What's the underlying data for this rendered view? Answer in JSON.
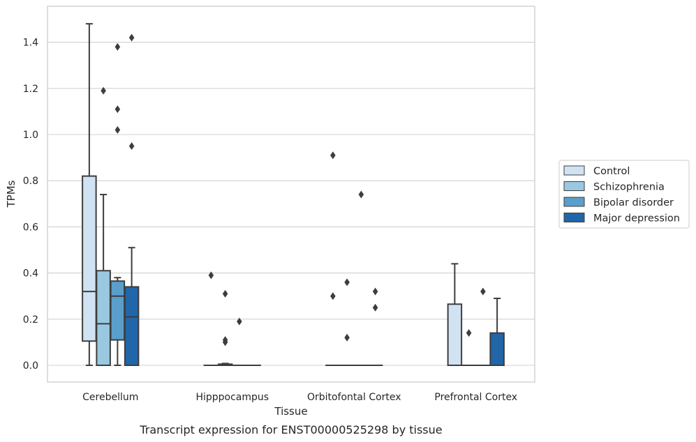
{
  "chart_data": {
    "type": "box",
    "title": "",
    "caption": "Transcript expression for ENST00000525298 by tissue",
    "xlabel": "Tissue",
    "ylabel": "TPMs",
    "ylim": [
      -0.07,
      1.56
    ],
    "yticks": [
      0.0,
      0.2,
      0.4,
      0.6,
      0.8,
      1.0,
      1.2,
      1.4
    ],
    "ytick_labels": [
      "0.0",
      "0.2",
      "0.4",
      "0.6",
      "0.8",
      "1.0",
      "1.2",
      "1.4"
    ],
    "grid": "horizontal",
    "legend_position": "right",
    "categories": [
      "Cerebellum",
      "Hipppocampus",
      "Orbitofontal Cortex",
      "Prefrontal Cortex"
    ],
    "series": [
      {
        "name": "Control",
        "color": "#d1e2f2",
        "boxes": [
          {
            "whislo": 0.0,
            "q1": 0.105,
            "med": 0.32,
            "q3": 0.82,
            "whishi": 1.48,
            "fliers": []
          },
          {
            "whislo": 0.0,
            "q1": 0.0,
            "med": 0.0,
            "q3": 0.0,
            "whishi": 0.0,
            "fliers": [
              0.39
            ]
          },
          {
            "whislo": 0.0,
            "q1": 0.0,
            "med": 0.0,
            "q3": 0.0,
            "whishi": 0.0,
            "fliers": [
              0.91,
              0.3
            ]
          },
          {
            "whislo": 0.0,
            "q1": 0.0,
            "med": 0.0,
            "q3": 0.265,
            "whishi": 0.44,
            "fliers": []
          }
        ]
      },
      {
        "name": "Schizophrenia",
        "color": "#9ac8e0",
        "boxes": [
          {
            "whislo": 0.0,
            "q1": 0.0,
            "med": 0.18,
            "q3": 0.41,
            "whishi": 0.74,
            "fliers": [
              1.19
            ]
          },
          {
            "whislo": 0.0,
            "q1": 0.0,
            "med": 0.0,
            "q3": 0.005,
            "whishi": 0.008,
            "fliers": [
              0.31,
              0.11,
              0.1
            ]
          },
          {
            "whislo": 0.0,
            "q1": 0.0,
            "med": 0.0,
            "q3": 0.0,
            "whishi": 0.0,
            "fliers": [
              0.36,
              0.12
            ]
          },
          {
            "whislo": 0.0,
            "q1": 0.0,
            "med": 0.0,
            "q3": 0.0,
            "whishi": 0.0,
            "fliers": [
              0.14
            ]
          }
        ]
      },
      {
        "name": "Bipolar disorder",
        "color": "#5a9fcb",
        "boxes": [
          {
            "whislo": 0.0,
            "q1": 0.11,
            "med": 0.3,
            "q3": 0.365,
            "whishi": 0.38,
            "fliers": [
              1.38,
              1.11,
              1.02
            ]
          },
          {
            "whislo": 0.0,
            "q1": 0.0,
            "med": 0.0,
            "q3": 0.0,
            "whishi": 0.0,
            "fliers": [
              0.19
            ]
          },
          {
            "whislo": 0.0,
            "q1": 0.0,
            "med": 0.0,
            "q3": 0.0,
            "whishi": 0.0,
            "fliers": [
              0.74
            ]
          },
          {
            "whislo": 0.0,
            "q1": 0.0,
            "med": 0.0,
            "q3": 0.0,
            "whishi": 0.0,
            "fliers": [
              0.32
            ]
          }
        ]
      },
      {
        "name": "Major depression",
        "color": "#2166a8",
        "boxes": [
          {
            "whislo": 0.0,
            "q1": 0.0,
            "med": 0.21,
            "q3": 0.34,
            "whishi": 0.51,
            "fliers": [
              1.42,
              0.95
            ]
          },
          {
            "whislo": 0.0,
            "q1": 0.0,
            "med": 0.0,
            "q3": 0.0,
            "whishi": 0.0,
            "fliers": []
          },
          {
            "whislo": 0.0,
            "q1": 0.0,
            "med": 0.0,
            "q3": 0.0,
            "whishi": 0.0,
            "fliers": [
              0.32,
              0.25
            ]
          },
          {
            "whislo": 0.0,
            "q1": 0.0,
            "med": 0.0,
            "q3": 0.14,
            "whishi": 0.29,
            "fliers": []
          }
        ]
      }
    ]
  }
}
